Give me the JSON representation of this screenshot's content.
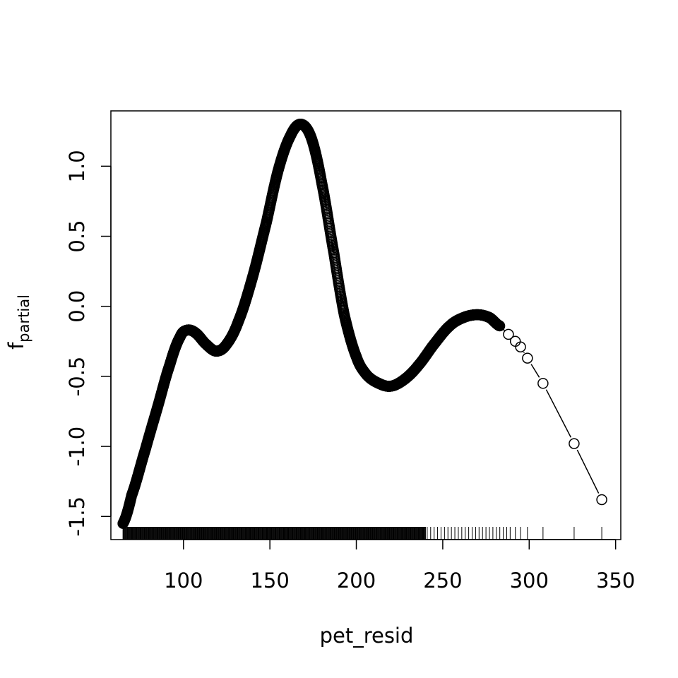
{
  "chart_data": {
    "type": "line",
    "xlabel": "pet_resid",
    "ylabel_main": "f",
    "ylabel_sub": "partial",
    "xlim": [
      58,
      353
    ],
    "ylim": [
      -1.665,
      1.395
    ],
    "x_ticks": [
      100,
      150,
      200,
      250,
      300,
      350
    ],
    "x_tick_labels": [
      "100",
      "150",
      "200",
      "250",
      "300",
      "350"
    ],
    "y_ticks": [
      -1.5,
      -1.0,
      -0.5,
      0.0,
      0.5,
      1.0
    ],
    "y_tick_labels": [
      "-1.5",
      "-1.0",
      "-0.5",
      "0.0",
      "0.5",
      "1.0"
    ],
    "series": [
      {
        "marker": "open-circle",
        "curve_knots": [
          {
            "x": 65,
            "y": -1.55
          },
          {
            "x": 70,
            "y": -1.35
          },
          {
            "x": 78,
            "y": -1.02
          },
          {
            "x": 85,
            "y": -0.72
          },
          {
            "x": 92,
            "y": -0.42
          },
          {
            "x": 98,
            "y": -0.22
          },
          {
            "x": 102,
            "y": -0.17
          },
          {
            "x": 107,
            "y": -0.19
          },
          {
            "x": 113,
            "y": -0.27
          },
          {
            "x": 119,
            "y": -0.32
          },
          {
            "x": 125,
            "y": -0.27
          },
          {
            "x": 132,
            "y": -0.1
          },
          {
            "x": 140,
            "y": 0.21
          },
          {
            "x": 148,
            "y": 0.6
          },
          {
            "x": 155,
            "y": 0.98
          },
          {
            "x": 162,
            "y": 1.22
          },
          {
            "x": 168,
            "y": 1.3
          },
          {
            "x": 174,
            "y": 1.2
          },
          {
            "x": 180,
            "y": 0.88
          },
          {
            "x": 187,
            "y": 0.38
          },
          {
            "x": 193,
            "y": -0.06
          },
          {
            "x": 200,
            "y": -0.36
          },
          {
            "x": 206,
            "y": -0.49
          },
          {
            "x": 213,
            "y": -0.55
          },
          {
            "x": 220,
            "y": -0.57
          },
          {
            "x": 228,
            "y": -0.52
          },
          {
            "x": 236,
            "y": -0.42
          },
          {
            "x": 245,
            "y": -0.27
          },
          {
            "x": 254,
            "y": -0.14
          },
          {
            "x": 262,
            "y": -0.08
          },
          {
            "x": 270,
            "y": -0.06
          },
          {
            "x": 277,
            "y": -0.08
          },
          {
            "x": 283,
            "y": -0.14
          }
        ],
        "dense_x_range": [
          65,
          283
        ],
        "sparse_points": [
          {
            "x": 288,
            "y": -0.2
          },
          {
            "x": 292,
            "y": -0.25
          },
          {
            "x": 295,
            "y": -0.29
          },
          {
            "x": 299,
            "y": -0.37
          },
          {
            "x": 308,
            "y": -0.55
          },
          {
            "x": 326,
            "y": -0.98
          },
          {
            "x": 342,
            "y": -1.38
          }
        ]
      }
    ],
    "rug": {
      "dense_range": [
        65,
        240
      ],
      "sparse_x": [
        241,
        243,
        245,
        247,
        249,
        251,
        253,
        255,
        257,
        259,
        261,
        263,
        265,
        267,
        269,
        271,
        273,
        275,
        277,
        279,
        281,
        283,
        285,
        287,
        289,
        292,
        295,
        299,
        308,
        326,
        342
      ]
    },
    "grid": false
  }
}
